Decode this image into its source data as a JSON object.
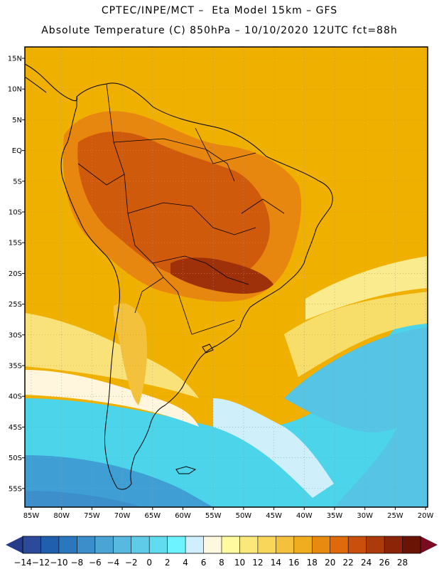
{
  "header": {
    "line1": "CPTEC/INPE/MCT –  Eta Model 15km – GFS",
    "line2": "Absolute Temperature (C) 850hPa – 10/10/2020 12UTC fct=88h"
  },
  "map": {
    "lat_labels": [
      "15N",
      "10N",
      "5N",
      "EQ",
      "5S",
      "10S",
      "15S",
      "20S",
      "25S",
      "30S",
      "35S",
      "40S",
      "45S",
      "50S",
      "55S"
    ],
    "lon_labels": [
      "85W",
      "80W",
      "75W",
      "70W",
      "65W",
      "60W",
      "55W",
      "50W",
      "45W",
      "40W",
      "35W",
      "30W",
      "25W",
      "20W"
    ],
    "ocean_color": "#f0b000",
    "frame_color": "#000000",
    "grid_color": "#9a9a9a"
  },
  "colorbar": {
    "labels": [
      "-14",
      "-12",
      "-10",
      "-8",
      "-6",
      "-4",
      "-2",
      "0",
      "2",
      "4",
      "6",
      "8",
      "10",
      "12",
      "14",
      "16",
      "18",
      "20",
      "22",
      "24",
      "26",
      "28"
    ],
    "colors": [
      "#2c4a9a",
      "#1f5fae",
      "#2a77bd",
      "#3a8fcb",
      "#4ba4d6",
      "#57b8e0",
      "#5fcbe8",
      "#63dbef",
      "#6df2ff",
      "#cfefff",
      "#fff8e0",
      "#fffaa0",
      "#fbe87a",
      "#f7d65a",
      "#f3c13c",
      "#f0ad1e",
      "#e88a10",
      "#df6a0c",
      "#c8500c",
      "#ad3a0a",
      "#8c2408",
      "#6a1406"
    ],
    "left_arrow_color": "#263c8a",
    "right_arrow_color": "#7a0a20"
  }
}
